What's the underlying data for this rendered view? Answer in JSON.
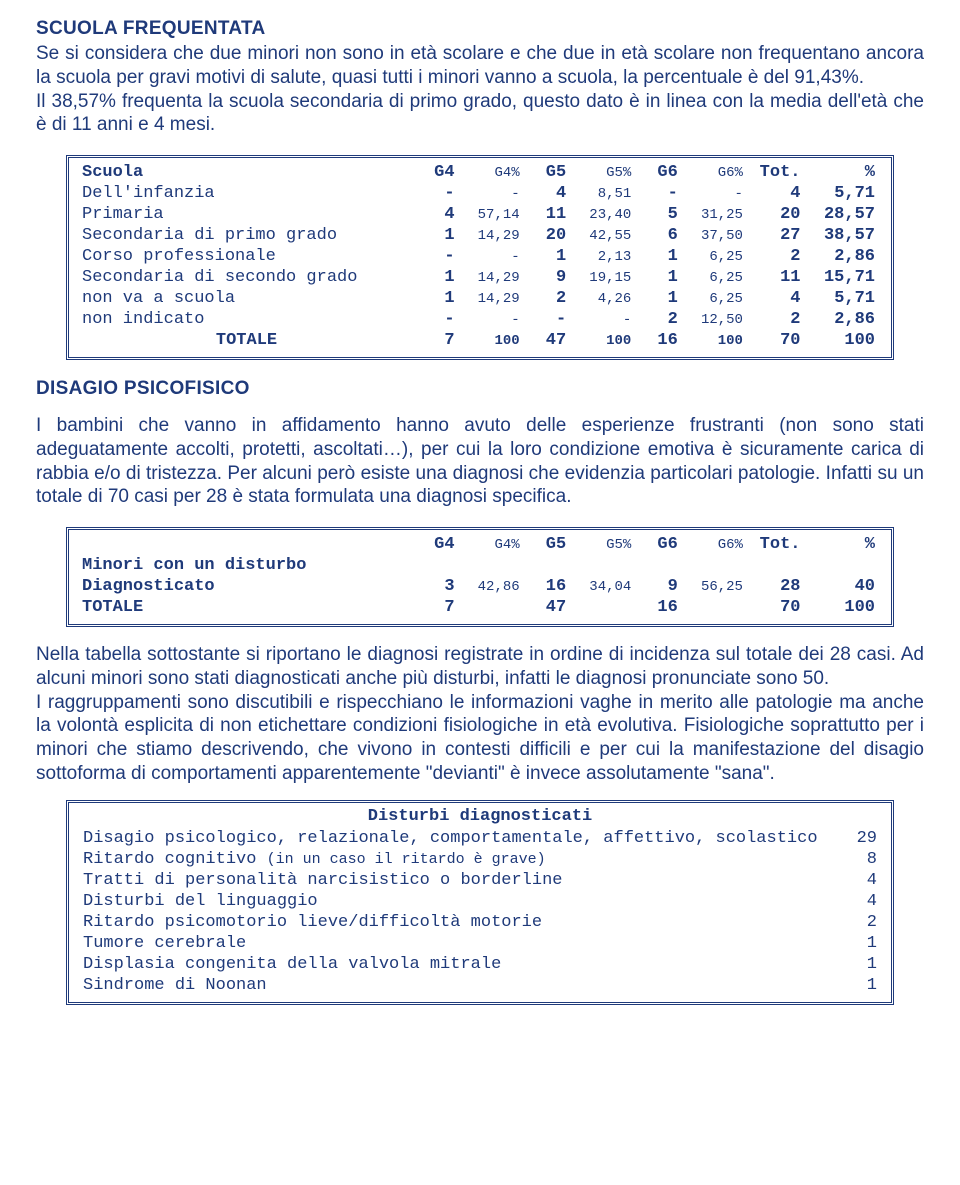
{
  "sec1": {
    "heading": "SCUOLA FREQUENTATA",
    "para": "Se si considera che due minori non sono in età scolare e che due in età scolare non frequentano ancora la scuola per gravi motivi di salute, quasi tutti i minori vanno a scuola, la percentuale è del 91,43%.\nIl 38,57% frequenta la scuola secondaria di primo grado, questo dato è in linea con la media dell'età che è di 11 anni e 4 mesi."
  },
  "table1": {
    "title": "Scuola",
    "headers": [
      "G4",
      "G4%",
      "G5",
      "G5%",
      "G6",
      "G6%",
      "Tot.",
      "%"
    ],
    "rows": [
      {
        "label": "Dell'infanzia",
        "g4": "-",
        "g4p": "-",
        "g5": "4",
        "g5p": "8,51",
        "g6": "-",
        "g6p": "-",
        "tot": "4",
        "pct": "5,71"
      },
      {
        "label": "Primaria",
        "g4": "4",
        "g4p": "57,14",
        "g5": "11",
        "g5p": "23,40",
        "g6": "5",
        "g6p": "31,25",
        "tot": "20",
        "pct": "28,57"
      },
      {
        "label": "Secondaria di primo grado",
        "g4": "1",
        "g4p": "14,29",
        "g5": "20",
        "g5p": "42,55",
        "g6": "6",
        "g6p": "37,50",
        "tot": "27",
        "pct": "38,57"
      },
      {
        "label": "Corso professionale",
        "g4": "-",
        "g4p": "-",
        "g5": "1",
        "g5p": "2,13",
        "g6": "1",
        "g6p": "6,25",
        "tot": "2",
        "pct": "2,86"
      },
      {
        "label": "Secondaria di secondo grado",
        "g4": "1",
        "g4p": "14,29",
        "g5": "9",
        "g5p": "19,15",
        "g6": "1",
        "g6p": "6,25",
        "tot": "11",
        "pct": "15,71"
      },
      {
        "label": "non va a scuola",
        "g4": "1",
        "g4p": "14,29",
        "g5": "2",
        "g5p": "4,26",
        "g6": "1",
        "g6p": "6,25",
        "tot": "4",
        "pct": "5,71"
      },
      {
        "label": "non indicato",
        "g4": "-",
        "g4p": "-",
        "g5": "-",
        "g5p": "-",
        "g6": "2",
        "g6p": "12,50",
        "tot": "2",
        "pct": "2,86"
      }
    ],
    "total": {
      "label": "TOTALE",
      "g4": "7",
      "g4p": "100",
      "g5": "47",
      "g5p": "100",
      "g6": "16",
      "g6p": "100",
      "tot": "70",
      "pct": "100"
    }
  },
  "sec2": {
    "heading": "DISAGIO PSICOFISICO",
    "para": "I bambini che vanno in affidamento hanno avuto delle esperienze frustranti (non sono stati adeguatamente accolti, protetti, ascoltati…), per cui la loro condizione emotiva è sicuramente carica di rabbia e/o di tristezza. Per alcuni però esiste una diagnosi che evidenzia particolari patologie. Infatti su un totale di 70 casi per 28 è stata formulata una diagnosi specifica."
  },
  "table2": {
    "headers": [
      "G4",
      "G4%",
      "G5",
      "G5%",
      "G6",
      "G6%",
      "Tot.",
      "%"
    ],
    "rowhead": "Minori con un disturbo",
    "rows": [
      {
        "label": "Diagnosticato",
        "g4": "3",
        "g4p": "42,86",
        "g5": "16",
        "g5p": "34,04",
        "g6": "9",
        "g6p": "56,25",
        "tot": "28",
        "pct": "40"
      },
      {
        "label": "TOTALE",
        "g4": "7",
        "g4p": "",
        "g5": "47",
        "g5p": "",
        "g6": "16",
        "g6p": "",
        "tot": "70",
        "pct": "100"
      }
    ]
  },
  "sec3": {
    "para": "Nella tabella sottostante si riportano le diagnosi registrate in ordine di incidenza sul totale dei 28 casi. Ad alcuni minori sono stati diagnosticati anche più disturbi, infatti le diagnosi pronunciate sono 50.\nI raggruppamenti sono discutibili e rispecchiano le informazioni vaghe in merito alle patologie ma anche la volontà esplicita di non etichettare condizioni fisiologiche in età evolutiva. Fisiologiche soprattutto per i minori che stiamo descrivendo, che vivono in contesti difficili e per cui la manifestazione del disagio sottoforma di comportamenti apparentemente \"devianti\" è invece assolutamente \"sana\"."
  },
  "table3": {
    "title": "Disturbi diagnosticati",
    "rows": [
      {
        "label": "Disagio psicologico, relazionale, comportamentale, affettivo, scolastico",
        "count": "29"
      },
      {
        "label": "Ritardo cognitivo",
        "note": "(in un caso il ritardo è grave)",
        "count": "8"
      },
      {
        "label": "Tratti di personalità narcisistico o borderline",
        "count": "4"
      },
      {
        "label": "Disturbi del linguaggio",
        "count": "4"
      },
      {
        "label": "Ritardo psicomotorio lieve/difficoltà motorie",
        "count": "2"
      },
      {
        "label": "Tumore cerebrale",
        "count": "1"
      },
      {
        "label": "Displasia congenita della valvola mitrale",
        "count": "1"
      },
      {
        "label": "Sindrome di Noonan",
        "count": "1"
      }
    ]
  }
}
